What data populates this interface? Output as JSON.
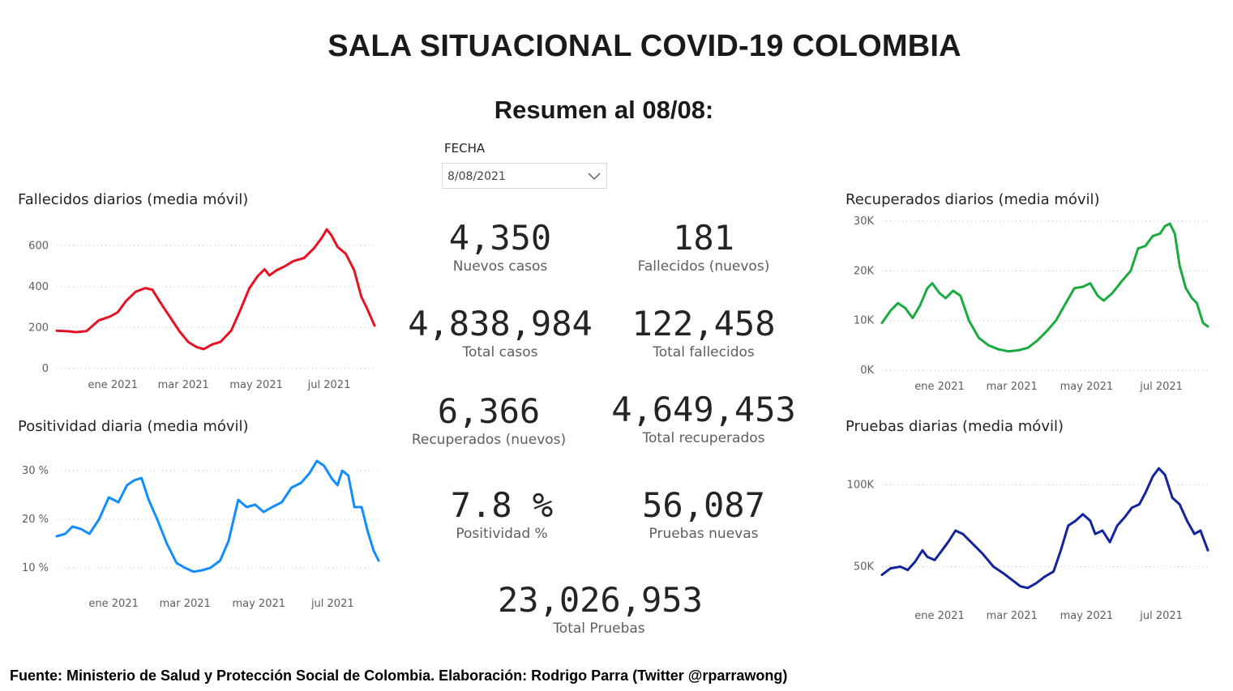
{
  "header": {
    "title": "SALA SITUACIONAL COVID-19 COLOMBIA",
    "subtitle": "Resumen al 08/08:"
  },
  "filter": {
    "label": "FECHA",
    "value": "8/08/2021"
  },
  "kpis": {
    "nuevos_casos": {
      "value": "4,350",
      "label": "Nuevos casos"
    },
    "fallecidos_nuevos": {
      "value": "181",
      "label": "Fallecidos (nuevos)"
    },
    "total_casos": {
      "value": "4,838,984",
      "label": "Total casos"
    },
    "total_fallecidos": {
      "value": "122,458",
      "label": "Total fallecidos"
    },
    "recuperados_nuevos": {
      "value": "6,366",
      "label": "Recuperados (nuevos)"
    },
    "total_recuperados": {
      "value": "4,649,453",
      "label": "Total recuperados"
    },
    "positividad": {
      "value": "7.8 %",
      "label": "Positividad %"
    },
    "pruebas_nuevas": {
      "value": "56,087",
      "label": "Pruebas nuevas"
    },
    "total_pruebas": {
      "value": "23,026,953",
      "label": "Total Pruebas"
    }
  },
  "footer": {
    "source": "Fuente: Ministerio de Salud y Protección Social de Colombia. Elaboración: Rodrigo Parra (Twitter @rparrawong)"
  },
  "chart_data": [
    {
      "id": "fallecidos",
      "type": "line",
      "title": "Fallecidos diarios (media móvil)",
      "color": "#e81123",
      "x_range": [
        "2020-11-15",
        "2021-08-08"
      ],
      "ylim": [
        0,
        700
      ],
      "yticks": [
        0,
        200,
        400,
        600
      ],
      "ytick_labels": [
        "0",
        "200",
        "400",
        "600"
      ],
      "xticks": [
        "2021-01-01",
        "2021-03-01",
        "2021-05-01",
        "2021-07-01"
      ],
      "xtick_labels": [
        "ene 2021",
        "mar 2021",
        "may 2021",
        "jul 2021"
      ],
      "grid": true,
      "points": [
        [
          "2020-11-15",
          185
        ],
        [
          "2020-11-25",
          182
        ],
        [
          "2020-12-01",
          178
        ],
        [
          "2020-12-10",
          183
        ],
        [
          "2020-12-20",
          235
        ],
        [
          "2020-12-30",
          255
        ],
        [
          "2021-01-05",
          275
        ],
        [
          "2021-01-12",
          330
        ],
        [
          "2021-01-20",
          375
        ],
        [
          "2021-01-28",
          393
        ],
        [
          "2021-02-03",
          385
        ],
        [
          "2021-02-10",
          320
        ],
        [
          "2021-02-18",
          250
        ],
        [
          "2021-02-26",
          180
        ],
        [
          "2021-03-05",
          130
        ],
        [
          "2021-03-12",
          105
        ],
        [
          "2021-03-18",
          95
        ],
        [
          "2021-03-25",
          118
        ],
        [
          "2021-04-01",
          130
        ],
        [
          "2021-04-10",
          185
        ],
        [
          "2021-04-18",
          290
        ],
        [
          "2021-04-25",
          390
        ],
        [
          "2021-05-02",
          450
        ],
        [
          "2021-05-08",
          485
        ],
        [
          "2021-05-12",
          455
        ],
        [
          "2021-05-18",
          480
        ],
        [
          "2021-05-25",
          500
        ],
        [
          "2021-06-01",
          525
        ],
        [
          "2021-06-10",
          540
        ],
        [
          "2021-06-18",
          585
        ],
        [
          "2021-06-25",
          640
        ],
        [
          "2021-06-29",
          680
        ],
        [
          "2021-07-03",
          650
        ],
        [
          "2021-07-08",
          595
        ],
        [
          "2021-07-15",
          560
        ],
        [
          "2021-07-22",
          480
        ],
        [
          "2021-07-28",
          350
        ],
        [
          "2021-08-02",
          290
        ],
        [
          "2021-08-08",
          210
        ]
      ]
    },
    {
      "id": "positividad",
      "type": "line",
      "title": "Positividad diaria (media móvil)",
      "color": "#118dff",
      "x_range": [
        "2020-11-15",
        "2021-08-08"
      ],
      "ylim": [
        6,
        33
      ],
      "yticks": [
        10,
        20,
        30
      ],
      "ytick_labels": [
        "10 %",
        "20 %",
        "30 %"
      ],
      "xticks": [
        "2021-01-01",
        "2021-03-01",
        "2021-05-01",
        "2021-07-01"
      ],
      "xtick_labels": [
        "ene 2021",
        "mar 2021",
        "may 2021",
        "jul 2021"
      ],
      "grid": true,
      "points": [
        [
          "2020-11-15",
          16.5
        ],
        [
          "2020-11-22",
          17.0
        ],
        [
          "2020-11-28",
          18.5
        ],
        [
          "2020-12-05",
          18.0
        ],
        [
          "2020-12-12",
          17.0
        ],
        [
          "2020-12-20",
          20.0
        ],
        [
          "2020-12-28",
          24.5
        ],
        [
          "2021-01-05",
          23.5
        ],
        [
          "2021-01-12",
          27.0
        ],
        [
          "2021-01-18",
          28.0
        ],
        [
          "2021-01-24",
          28.5
        ],
        [
          "2021-01-30",
          24.0
        ],
        [
          "2021-02-06",
          20.0
        ],
        [
          "2021-02-14",
          15.0
        ],
        [
          "2021-02-22",
          11.0
        ],
        [
          "2021-03-01",
          10.0
        ],
        [
          "2021-03-08",
          9.2
        ],
        [
          "2021-03-15",
          9.5
        ],
        [
          "2021-03-22",
          10.0
        ],
        [
          "2021-03-30",
          11.5
        ],
        [
          "2021-04-06",
          15.5
        ],
        [
          "2021-04-14",
          24.0
        ],
        [
          "2021-04-21",
          22.5
        ],
        [
          "2021-04-28",
          23.0
        ],
        [
          "2021-05-05",
          21.5
        ],
        [
          "2021-05-12",
          22.5
        ],
        [
          "2021-05-20",
          23.5
        ],
        [
          "2021-05-28",
          26.5
        ],
        [
          "2021-06-05",
          27.5
        ],
        [
          "2021-06-12",
          29.5
        ],
        [
          "2021-06-18",
          32.0
        ],
        [
          "2021-06-24",
          31.0
        ],
        [
          "2021-06-30",
          28.5
        ],
        [
          "2021-07-05",
          27.0
        ],
        [
          "2021-07-09",
          30.0
        ],
        [
          "2021-07-14",
          29.0
        ],
        [
          "2021-07-19",
          22.5
        ],
        [
          "2021-07-25",
          22.5
        ],
        [
          "2021-07-30",
          17.5
        ],
        [
          "2021-08-04",
          13.5
        ],
        [
          "2021-08-08",
          11.5
        ]
      ]
    },
    {
      "id": "recuperados",
      "type": "line",
      "title": "Recuperados diarios (media móvil)",
      "color": "#1aab40",
      "x_range": [
        "2020-11-15",
        "2021-08-08"
      ],
      "ylim": [
        0,
        30000
      ],
      "yticks": [
        0,
        10000,
        20000,
        30000
      ],
      "ytick_labels": [
        "0K",
        "10K",
        "20K",
        "30K"
      ],
      "xticks": [
        "2021-01-01",
        "2021-03-01",
        "2021-05-01",
        "2021-07-01"
      ],
      "xtick_labels": [
        "ene 2021",
        "mar 2021",
        "may 2021",
        "jul 2021"
      ],
      "grid": true,
      "points": [
        [
          "2020-11-15",
          9500
        ],
        [
          "2020-11-22",
          12000
        ],
        [
          "2020-11-28",
          13500
        ],
        [
          "2020-12-04",
          12500
        ],
        [
          "2020-12-10",
          10500
        ],
        [
          "2020-12-16",
          13000
        ],
        [
          "2020-12-22",
          16500
        ],
        [
          "2020-12-26",
          17500
        ],
        [
          "2021-01-01",
          15500
        ],
        [
          "2021-01-06",
          14500
        ],
        [
          "2021-01-12",
          16000
        ],
        [
          "2021-01-18",
          15000
        ],
        [
          "2021-01-25",
          10000
        ],
        [
          "2021-02-02",
          6500
        ],
        [
          "2021-02-10",
          5000
        ],
        [
          "2021-02-18",
          4200
        ],
        [
          "2021-02-26",
          3800
        ],
        [
          "2021-03-06",
          4000
        ],
        [
          "2021-03-14",
          4500
        ],
        [
          "2021-03-22",
          6000
        ],
        [
          "2021-03-30",
          8000
        ],
        [
          "2021-04-06",
          10000
        ],
        [
          "2021-04-14",
          13500
        ],
        [
          "2021-04-21",
          16500
        ],
        [
          "2021-04-28",
          16800
        ],
        [
          "2021-05-04",
          17500
        ],
        [
          "2021-05-10",
          15000
        ],
        [
          "2021-05-15",
          14000
        ],
        [
          "2021-05-22",
          15500
        ],
        [
          "2021-05-30",
          18000
        ],
        [
          "2021-06-06",
          20000
        ],
        [
          "2021-06-12",
          24500
        ],
        [
          "2021-06-18",
          25000
        ],
        [
          "2021-06-24",
          27000
        ],
        [
          "2021-06-30",
          27500
        ],
        [
          "2021-07-04",
          29000
        ],
        [
          "2021-07-08",
          29500
        ],
        [
          "2021-07-12",
          27500
        ],
        [
          "2021-07-16",
          21000
        ],
        [
          "2021-07-21",
          16500
        ],
        [
          "2021-07-26",
          14500
        ],
        [
          "2021-07-30",
          13500
        ],
        [
          "2021-08-04",
          9500
        ],
        [
          "2021-08-08",
          8800
        ]
      ]
    },
    {
      "id": "pruebas",
      "type": "line",
      "title": "Pruebas diarias (media móvil)",
      "color": "#12239e",
      "x_range": [
        "2020-11-15",
        "2021-08-08"
      ],
      "ylim": [
        30000,
        115000
      ],
      "yticks": [
        50000,
        100000
      ],
      "ytick_labels": [
        "50K",
        "100K"
      ],
      "xticks": [
        "2021-01-01",
        "2021-03-01",
        "2021-05-01",
        "2021-07-01"
      ],
      "xtick_labels": [
        "ene 2021",
        "mar 2021",
        "may 2021",
        "jul 2021"
      ],
      "grid": true,
      "points": [
        [
          "2020-11-15",
          45000
        ],
        [
          "2020-11-22",
          49000
        ],
        [
          "2020-11-30",
          50000
        ],
        [
          "2020-12-06",
          48000
        ],
        [
          "2020-12-12",
          53000
        ],
        [
          "2020-12-18",
          60000
        ],
        [
          "2020-12-22",
          56000
        ],
        [
          "2020-12-28",
          54000
        ],
        [
          "2021-01-03",
          60000
        ],
        [
          "2021-01-08",
          65000
        ],
        [
          "2021-01-14",
          72000
        ],
        [
          "2021-01-20",
          70000
        ],
        [
          "2021-01-28",
          64000
        ],
        [
          "2021-02-05",
          58000
        ],
        [
          "2021-02-14",
          50000
        ],
        [
          "2021-02-22",
          46000
        ],
        [
          "2021-03-01",
          42000
        ],
        [
          "2021-03-08",
          38000
        ],
        [
          "2021-03-14",
          37000
        ],
        [
          "2021-03-21",
          40000
        ],
        [
          "2021-03-28",
          44000
        ],
        [
          "2021-04-04",
          47000
        ],
        [
          "2021-04-10",
          60000
        ],
        [
          "2021-04-16",
          75000
        ],
        [
          "2021-04-22",
          78000
        ],
        [
          "2021-04-28",
          82000
        ],
        [
          "2021-05-04",
          78000
        ],
        [
          "2021-05-08",
          70000
        ],
        [
          "2021-05-14",
          72000
        ],
        [
          "2021-05-20",
          65000
        ],
        [
          "2021-05-26",
          75000
        ],
        [
          "2021-06-01",
          80000
        ],
        [
          "2021-06-07",
          86000
        ],
        [
          "2021-06-13",
          88000
        ],
        [
          "2021-06-18",
          95000
        ],
        [
          "2021-06-24",
          105000
        ],
        [
          "2021-06-29",
          110000
        ],
        [
          "2021-07-04",
          106000
        ],
        [
          "2021-07-10",
          92000
        ],
        [
          "2021-07-16",
          88000
        ],
        [
          "2021-07-22",
          78000
        ],
        [
          "2021-07-28",
          70000
        ],
        [
          "2021-08-02",
          72000
        ],
        [
          "2021-08-08",
          60000
        ]
      ]
    }
  ]
}
